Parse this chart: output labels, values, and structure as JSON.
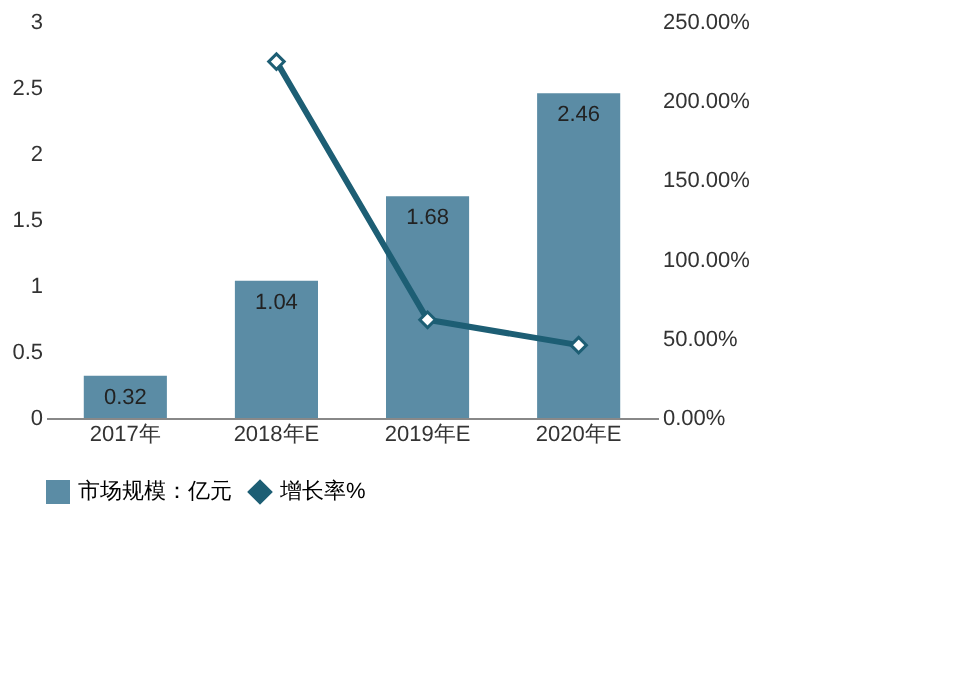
{
  "chart_data": {
    "type": "bar",
    "categories": [
      "2017年",
      "2018年E",
      "2019年E",
      "2020年E"
    ],
    "series": [
      {
        "name": "市场规模：亿元",
        "color": "#5b8ca5",
        "values": [
          0.32,
          1.04,
          1.68,
          2.46
        ],
        "value_labels": [
          "0.32",
          "1.04",
          "1.68",
          "2.46"
        ]
      },
      {
        "name": "增长率%",
        "type": "line",
        "axis": "y2",
        "color": "#1d5e74",
        "values": [
          null,
          225,
          62,
          46
        ]
      }
    ],
    "ylim": [
      0,
      3
    ],
    "yticks": [
      0,
      0.5,
      1,
      1.5,
      2,
      2.5,
      3
    ],
    "y2lim": [
      0,
      250
    ],
    "y2ticks": [
      {
        "value": 0,
        "label": "0.00%"
      },
      {
        "value": 50,
        "label": "50.00%"
      },
      {
        "value": 100,
        "label": "100.00%"
      },
      {
        "value": 150,
        "label": "150.00%"
      },
      {
        "value": 200,
        "label": "200.00%"
      },
      {
        "value": 250,
        "label": "250.00%"
      }
    ],
    "legend": "bottom",
    "marker": "diamond",
    "grid": false
  }
}
